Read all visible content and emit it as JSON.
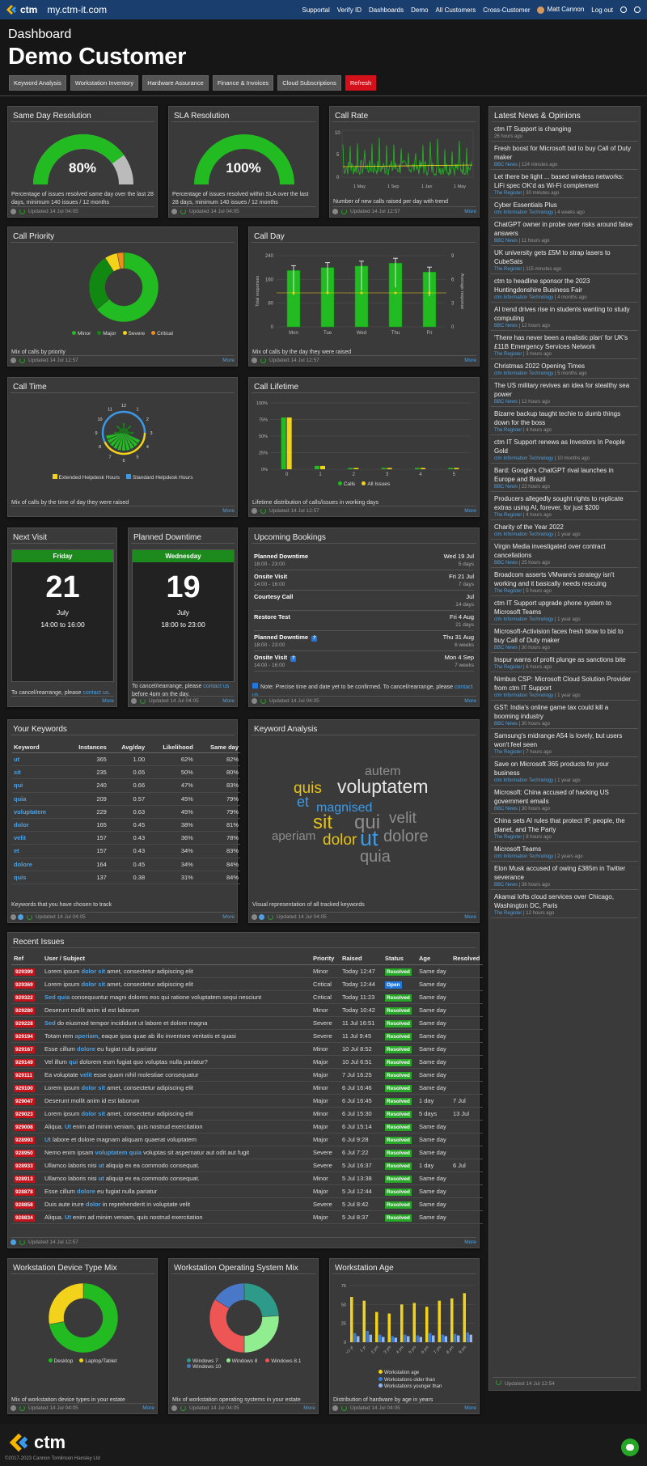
{
  "app": {
    "site": "my.ctm-it.com",
    "logo_text": "ctm"
  },
  "nav": {
    "items": [
      "Supportal",
      "Verify ID",
      "Dashboards",
      "Demo",
      "All Customers",
      "Cross-Customer"
    ],
    "user": "Matt Cannon",
    "logout": "Log out"
  },
  "header": {
    "subtitle": "Dashboard",
    "title": "Demo Customer"
  },
  "tabs": [
    "Keyword Analysis",
    "Workstation Inventory",
    "Hardware Assurance",
    "Finance & Invoices",
    "Cloud Subscriptions",
    "Refresh"
  ],
  "common": {
    "more": "More",
    "updated": "Updated 14 Jul 04:05",
    "updated_1257": "Updated 14 Jul 12:57",
    "updated_1254": "Updated 14 Jul 12:54"
  },
  "same_day": {
    "title": "Same Day Resolution",
    "value": "80%",
    "desc": "Percentage of issues resolved same day over the last 28 days, minimum 140 issues / 12 months"
  },
  "sla": {
    "title": "SLA Resolution",
    "value": "100%",
    "desc": "Percentage of issues resolved within SLA over the last 28 days, minimum 140 issues / 12 months"
  },
  "call_rate": {
    "title": "Call Rate",
    "desc": "Number of new calls raised per day with trend",
    "xlabels": [
      "1 May",
      "1 Sep",
      "1 Jan",
      "1 May"
    ],
    "ylabels": [
      "10",
      "5",
      "0"
    ]
  },
  "call_priority": {
    "title": "Call Priority",
    "desc": "Mix of calls by priority",
    "legend": [
      "Minor",
      "Major",
      "Severe",
      "Critical"
    ]
  },
  "call_day": {
    "title": "Call Day",
    "desc": "Mix of calls by the day they were raised",
    "ylabel": "Total responses",
    "y2label": "Average response",
    "yticks": [
      "240",
      "160",
      "80",
      "0"
    ],
    "y2ticks": [
      "9",
      "6",
      "3",
      "0"
    ]
  },
  "call_time": {
    "title": "Call Time",
    "desc": "Mix of calls by the time of day they were raised",
    "legend": [
      "Extended Helpdesk Hours",
      "Standard Helpdesk Hours"
    ],
    "hours": [
      "12",
      "1",
      "2",
      "3",
      "4",
      "5",
      "6",
      "7",
      "8",
      "9",
      "10",
      "11"
    ]
  },
  "call_lifetime": {
    "title": "Call Lifetime",
    "desc": "Lifetime distribution of calls/issues in working days",
    "yticks": [
      "100%",
      "75%",
      "50%",
      "25%",
      "0%"
    ],
    "legend": [
      "Calls",
      "All Issues"
    ]
  },
  "chart_data": [
    {
      "type": "bar",
      "title": "Call Day",
      "categories": [
        "Mon",
        "Tue",
        "Wed",
        "Thu",
        "Fri"
      ],
      "series": [
        {
          "name": "Total responses",
          "values": [
            190,
            200,
            205,
            215,
            185
          ]
        }
      ],
      "ylim": [
        0,
        240
      ]
    },
    {
      "type": "pie",
      "title": "Call Priority",
      "categories": [
        "Minor",
        "Major",
        "Severe",
        "Critical"
      ],
      "values": [
        64,
        27,
        6,
        3
      ]
    },
    {
      "type": "bar",
      "title": "Call Lifetime",
      "categories": [
        "0",
        "1",
        "2",
        "3",
        "4",
        "5"
      ],
      "series": [
        {
          "name": "Calls",
          "values": [
            78,
            5,
            2,
            2,
            2,
            2
          ]
        },
        {
          "name": "All Issues",
          "values": [
            78,
            5,
            2,
            2,
            2,
            2
          ]
        }
      ],
      "ylim": [
        0,
        100
      ]
    },
    {
      "type": "pie",
      "title": "Workstation Device Type Mix",
      "categories": [
        "Desktop",
        "Laptop/Tablet"
      ],
      "values": [
        72,
        28
      ]
    },
    {
      "type": "pie",
      "title": "Workstation Operating System Mix",
      "categories": [
        "Windows 7",
        "Windows 8",
        "Windows 8.1",
        "Windows 10"
      ],
      "values": [
        24,
        26,
        34,
        16
      ]
    },
    {
      "type": "bar",
      "title": "Workstation Age",
      "categories": [
        "<1 yr",
        "1 yr",
        "2 yrs",
        "3 yrs",
        "4 yrs",
        "5 yrs",
        "6 yrs",
        "7 yrs",
        "8 yrs",
        "9 yrs"
      ],
      "series": [
        {
          "name": "Workstation age",
          "values": [
            60,
            55,
            40,
            38,
            50,
            52,
            47,
            55,
            58,
            65
          ]
        },
        {
          "name": "Workstations older than",
          "values": [
            12,
            15,
            10,
            8,
            10,
            9,
            12,
            10,
            11,
            13
          ]
        },
        {
          "name": "Workstations younger than",
          "values": [
            8,
            10,
            7,
            6,
            8,
            7,
            9,
            8,
            9,
            10
          ]
        }
      ],
      "ylim": [
        0,
        75
      ]
    }
  ],
  "next_visit": {
    "title": "Next Visit",
    "day": "Friday",
    "date": "21",
    "month": "July",
    "time": "14:00 to 16:00",
    "desc": "To cancel/rearrange, please",
    "link": "contact us."
  },
  "planned_downtime": {
    "title": "Planned Downtime",
    "day": "Wednesday",
    "date": "19",
    "month": "July",
    "time": "18:00 to 23:00",
    "desc": "To cancel/rearrange, please",
    "link": "contact us",
    "desc2": "before 4pm on the day."
  },
  "bookings": {
    "title": "Upcoming Bookings",
    "note": "Note: Precise time and date yet to be confirmed. To cancel/rearrange, please",
    "link": "contact us.",
    "items": [
      {
        "name": "Planned Downtime",
        "time": "18:00 - 23:00",
        "date": "Wed 19 Jul",
        "ago": "5 days"
      },
      {
        "name": "Onsite Visit",
        "time": "14:00 - 16:00",
        "date": "Fri 21 Jul",
        "ago": "7 days"
      },
      {
        "name": "Courtesy Call",
        "time": "",
        "date": "Jul",
        "ago": "14 days"
      },
      {
        "name": "Restore Test",
        "time": "",
        "date": "Fri 4 Aug",
        "ago": "21 days"
      },
      {
        "name": "Planned Downtime",
        "time": "18:00 - 23:00",
        "date": "Thu 31 Aug",
        "ago": "6 weeks"
      },
      {
        "name": "Onsite Visit",
        "time": "14:00 - 16:00",
        "date": "Mon 4 Sep",
        "ago": "7 weeks"
      }
    ]
  },
  "keywords": {
    "title": "Your Keywords",
    "desc": "Keywords that you have chosen to track",
    "headers": [
      "Keyword",
      "Instances",
      "Avg/day",
      "Likelihood",
      "Same day"
    ],
    "rows": [
      [
        "ut",
        "365",
        "1.00",
        "62%",
        "82%"
      ],
      [
        "sit",
        "235",
        "0.65",
        "50%",
        "80%"
      ],
      [
        "qui",
        "240",
        "0.66",
        "47%",
        "83%"
      ],
      [
        "quia",
        "209",
        "0.57",
        "45%",
        "79%"
      ],
      [
        "voluptatem",
        "229",
        "0.63",
        "45%",
        "79%"
      ],
      [
        "dolor",
        "165",
        "0.45",
        "38%",
        "81%"
      ],
      [
        "velit",
        "157",
        "0.43",
        "36%",
        "78%"
      ],
      [
        "et",
        "157",
        "0.43",
        "34%",
        "83%"
      ],
      [
        "dolore",
        "164",
        "0.45",
        "34%",
        "84%"
      ],
      [
        "quis",
        "137",
        "0.38",
        "31%",
        "84%"
      ]
    ]
  },
  "keyword_analysis": {
    "title": "Keyword Analysis",
    "desc": "Visual representation of all tracked keywords",
    "words": [
      "autem",
      "quis",
      "voluptatem",
      "et",
      "magnised",
      "sit",
      "qui",
      "velit",
      "aperiam",
      "dolor",
      "ut",
      "dolore",
      "quia"
    ],
    "colors": {
      "yellow": "#e6c21a",
      "blue": "#3a9ae8",
      "grey": "#8e8e8e",
      "white": "#e6e6e6"
    }
  },
  "issues": {
    "title": "Recent Issues",
    "headers": [
      "Ref",
      "User / Subject",
      "Priority",
      "Raised",
      "Status",
      "Age",
      "Resolved"
    ],
    "rows": [
      {
        "ref": "929399",
        "pre": "Lorem ipsum ",
        "hl": "dolor sit",
        "post": " amet, consectetur adipiscing elit",
        "pri": "Minor",
        "raised": "Today 12:47",
        "status": "Resolved",
        "age": "Same day",
        "res": ""
      },
      {
        "ref": "929369",
        "pre": "Lorem ipsum ",
        "hl": "dolor sit",
        "post": " amet, consectetur adipiscing elit",
        "pri": "Critical",
        "raised": "Today 12:44",
        "status": "Open",
        "age": "Same day",
        "res": ""
      },
      {
        "ref": "929322",
        "pre": "",
        "hl": "Sed quia",
        "post": " consequuntur magni dolores eos qui ratione voluptatem sequi nesciunt",
        "pri": "Critical",
        "raised": "Today 11:23",
        "status": "Resolved",
        "age": "Same day",
        "res": ""
      },
      {
        "ref": "929280",
        "pre": "Deserunt mollit anim id est laborum",
        "hl": "",
        "post": "",
        "pri": "Minor",
        "raised": "Today 10:42",
        "status": "Resolved",
        "age": "Same day",
        "res": ""
      },
      {
        "ref": "929228",
        "pre": "",
        "hl": "Sed",
        "post": " do eiusmod tempor incididunt ut labore et dolore magna",
        "pri": "Severe",
        "raised": "11 Jul 16:51",
        "status": "Resolved",
        "age": "Same day",
        "res": ""
      },
      {
        "ref": "929194",
        "pre": "Totam rem ",
        "hl": "aperiam",
        "post": ", eaque ipsa quae ab illo inventore veritatis et quasi",
        "pri": "Severe",
        "raised": "11 Jul 9:45",
        "status": "Resolved",
        "age": "Same day",
        "res": ""
      },
      {
        "ref": "929167",
        "pre": "Esse cillum ",
        "hl": "dolore",
        "post": " eu fugiat nulla pariatur",
        "pri": "Minor",
        "raised": "10 Jul 8:52",
        "status": "Resolved",
        "age": "Same day",
        "res": ""
      },
      {
        "ref": "929149",
        "pre": "Vel illum ",
        "hl": "qui",
        "post": " dolorem eum fugiat quo voluptas nulla pariatur?",
        "pri": "Major",
        "raised": "10 Jul 6:51",
        "status": "Resolved",
        "age": "Same day",
        "res": ""
      },
      {
        "ref": "929111",
        "pre": "Ea voluptate ",
        "hl": "velit",
        "post": " esse quam nihil molestiae consequatur",
        "pri": "Major",
        "raised": "7 Jul 16:25",
        "status": "Resolved",
        "age": "Same day",
        "res": ""
      },
      {
        "ref": "929100",
        "pre": "Lorem ipsum ",
        "hl": "dolor sit",
        "post": " amet, consectetur adipiscing elit",
        "pri": "Minor",
        "raised": "6 Jul 16:46",
        "status": "Resolved",
        "age": "Same day",
        "res": ""
      },
      {
        "ref": "929047",
        "pre": "Deserunt mollit anim id est laborum",
        "hl": "",
        "post": "",
        "pri": "Major",
        "raised": "6 Jul 16:45",
        "status": "Resolved",
        "age": "1 day",
        "res": "7 Jul"
      },
      {
        "ref": "929023",
        "pre": "Lorem ipsum ",
        "hl": "dolor sit",
        "post": " amet, consectetur adipiscing elit",
        "pri": "Minor",
        "raised": "6 Jul 15:30",
        "status": "Resolved",
        "age": "5 days",
        "res": "13 Jul"
      },
      {
        "ref": "929008",
        "pre": "Aliqua. ",
        "hl": "Ut",
        "post": " enim ad minim veniam, quis nostrud exercitation",
        "pri": "Major",
        "raised": "6 Jul 15:14",
        "status": "Resolved",
        "age": "Same day",
        "res": ""
      },
      {
        "ref": "928993",
        "pre": "",
        "hl": "Ut",
        "post": " labore et dolore magnam aliquam quaerat voluptatem",
        "pri": "Major",
        "raised": "6 Jul 9:28",
        "status": "Resolved",
        "age": "Same day",
        "res": ""
      },
      {
        "ref": "928950",
        "pre": "Nemo enim ipsam ",
        "hl": "voluptatem quia",
        "post": " voluptas sit aspernatur aut odit aut fugit",
        "pri": "Severe",
        "raised": "6 Jul 7:22",
        "status": "Resolved",
        "age": "Same day",
        "res": ""
      },
      {
        "ref": "928933",
        "pre": "Ullamco laboris nisi ",
        "hl": "ut",
        "post": " aliquip ex ea commodo consequat.",
        "pri": "Severe",
        "raised": "5 Jul 16:37",
        "status": "Resolved",
        "age": "1 day",
        "res": "6 Jul"
      },
      {
        "ref": "928913",
        "pre": "Ullamco laboris nisi ",
        "hl": "ut",
        "post": " aliquip ex ea commodo consequat.",
        "pri": "Minor",
        "raised": "5 Jul 13:38",
        "status": "Resolved",
        "age": "Same day",
        "res": ""
      },
      {
        "ref": "928878",
        "pre": "Esse cillum ",
        "hl": "dolore",
        "post": " eu fugiat nulla pariatur",
        "pri": "Major",
        "raised": "5 Jul 12:44",
        "status": "Resolved",
        "age": "Same day",
        "res": ""
      },
      {
        "ref": "928858",
        "pre": "Duis aute irure ",
        "hl": "dolor",
        "post": " in reprehenderit in voluptate velit",
        "pri": "Severe",
        "raised": "5 Jul 8:42",
        "status": "Resolved",
        "age": "Same day",
        "res": ""
      },
      {
        "ref": "928834",
        "pre": "Aliqua. ",
        "hl": "Ut",
        "post": " enim ad minim veniam, quis nostrud exercitation",
        "pri": "Major",
        "raised": "5 Jul 8:37",
        "status": "Resolved",
        "age": "Same day",
        "res": ""
      }
    ]
  },
  "device_mix": {
    "title": "Workstation Device Type Mix",
    "desc": "Mix of workstation device types in your estate",
    "legend": [
      "Desktop",
      "Laptop/Tablet"
    ]
  },
  "os_mix": {
    "title": "Workstation Operating System Mix",
    "desc": "Mix of workstation operating systems in your estate",
    "legend": [
      "Windows 7",
      "Windows 8",
      "Windows 8.1",
      "Windows 10"
    ]
  },
  "ws_age": {
    "title": "Workstation Age",
    "desc": "Distribution of hardware by age in years",
    "yticks": [
      "75",
      "50",
      "25",
      "0"
    ],
    "legend": [
      "Workstation age",
      "Workstations older than",
      "Workstations younger than"
    ]
  },
  "news": {
    "title": "Latest News & Opinions",
    "items": [
      {
        "h": "ctm IT Support is changing",
        "src": "",
        "ago": "26 hours ago"
      },
      {
        "h": "Fresh boost for Microsoft bid to buy Call of Duty maker",
        "src": "BBC News",
        "ago": "124 minutes ago"
      },
      {
        "h": "Let there be light ... based wireless networks: LiFi spec OK'd as Wi-Fi complement",
        "src": "The Register",
        "ago": "30 minutes ago"
      },
      {
        "h": "Cyber Essentials Plus",
        "src": "ctm Information Technology",
        "ago": "4 weeks ago"
      },
      {
        "h": "ChatGPT owner in probe over risks around false answers",
        "src": "BBC News",
        "ago": "11 hours ago"
      },
      {
        "h": "UK university gets £5M to strap lasers to CubeSats",
        "src": "The Register",
        "ago": "115 minutes ago"
      },
      {
        "h": "ctm to headline sponsor the 2023 Huntingdonshire Business Fair",
        "src": "ctm Information Technology",
        "ago": "4 months ago"
      },
      {
        "h": "AI trend drives rise in students wanting to study computing",
        "src": "BBC News",
        "ago": "12 hours ago"
      },
      {
        "h": "'There has never been a realistic plan' for UK's £11B Emergency Services Network",
        "src": "The Register",
        "ago": "3 hours ago"
      },
      {
        "h": "Christmas 2022 Opening Times",
        "src": "ctm Information Technology",
        "ago": "5 months ago"
      },
      {
        "h": "The US military revives an idea for stealthy sea power",
        "src": "BBC News",
        "ago": "12 hours ago"
      },
      {
        "h": "Bizarre backup taught techie to dumb things down for the boss",
        "src": "The Register",
        "ago": "4 hours ago"
      },
      {
        "h": "ctm IT Support renews as Investors In People Gold",
        "src": "ctm Information Technology",
        "ago": "10 months ago"
      },
      {
        "h": "Bard: Google's ChatGPT rival launches in Europe and Brazil",
        "src": "BBC News",
        "ago": "22 hours ago"
      },
      {
        "h": "Producers allegedly sought rights to replicate extras using AI, forever, for just $200",
        "src": "The Register",
        "ago": "4 hours ago"
      },
      {
        "h": "Charity of the Year 2022",
        "src": "ctm Information Technology",
        "ago": "1 year ago"
      },
      {
        "h": "Virgin Media investigated over contract cancellations",
        "src": "BBC News",
        "ago": "25 hours ago"
      },
      {
        "h": "Broadcom asserts VMware's strategy isn't working and it basically needs rescuing",
        "src": "The Register",
        "ago": "5 hours ago"
      },
      {
        "h": "ctm IT Support upgrade phone system to Microsoft Teams",
        "src": "ctm Information Technology",
        "ago": "1 year ago"
      },
      {
        "h": "Microsoft-Activision faces fresh blow to bid to buy Call of Duty maker",
        "src": "BBC News",
        "ago": "30 hours ago"
      },
      {
        "h": "Inspur warns of profit plunge as sanctions bite",
        "src": "The Register",
        "ago": "6 hours ago"
      },
      {
        "h": "Nimbus CSP: Microsoft Cloud Solution Provider from ctm IT Support",
        "src": "ctm Information Technology",
        "ago": "1 year ago"
      },
      {
        "h": "GST: India's online game tax could kill a booming industry",
        "src": "BBC News",
        "ago": "30 hours ago"
      },
      {
        "h": "Samsung's midrange A54 is lovely, but users won't feel seen",
        "src": "The Register",
        "ago": "7 hours ago"
      },
      {
        "h": "Save on Microsoft 365 products for your business",
        "src": "ctm Information Technology",
        "ago": "1 year ago"
      },
      {
        "h": "Microsoft: China accused of hacking US government emails",
        "src": "BBC News",
        "ago": "30 hours ago"
      },
      {
        "h": "China sets AI rules that protect IP, people, the planet, and The Party",
        "src": "The Register",
        "ago": "8 hours ago"
      },
      {
        "h": "Microsoft Teams",
        "src": "ctm Information Technology",
        "ago": "2 years ago"
      },
      {
        "h": "Elon Musk accused of owing £385m in Twitter severance",
        "src": "BBC News",
        "ago": "38 hours ago"
      },
      {
        "h": "Akamai lofts cloud services over Chicago, Washington DC, Paris",
        "src": "The Register",
        "ago": "12 hours ago"
      }
    ]
  },
  "footer": {
    "logo_text": "ctm",
    "copyright": "©2017-2023 Cannon Tomlinson Hansley Ltd"
  }
}
